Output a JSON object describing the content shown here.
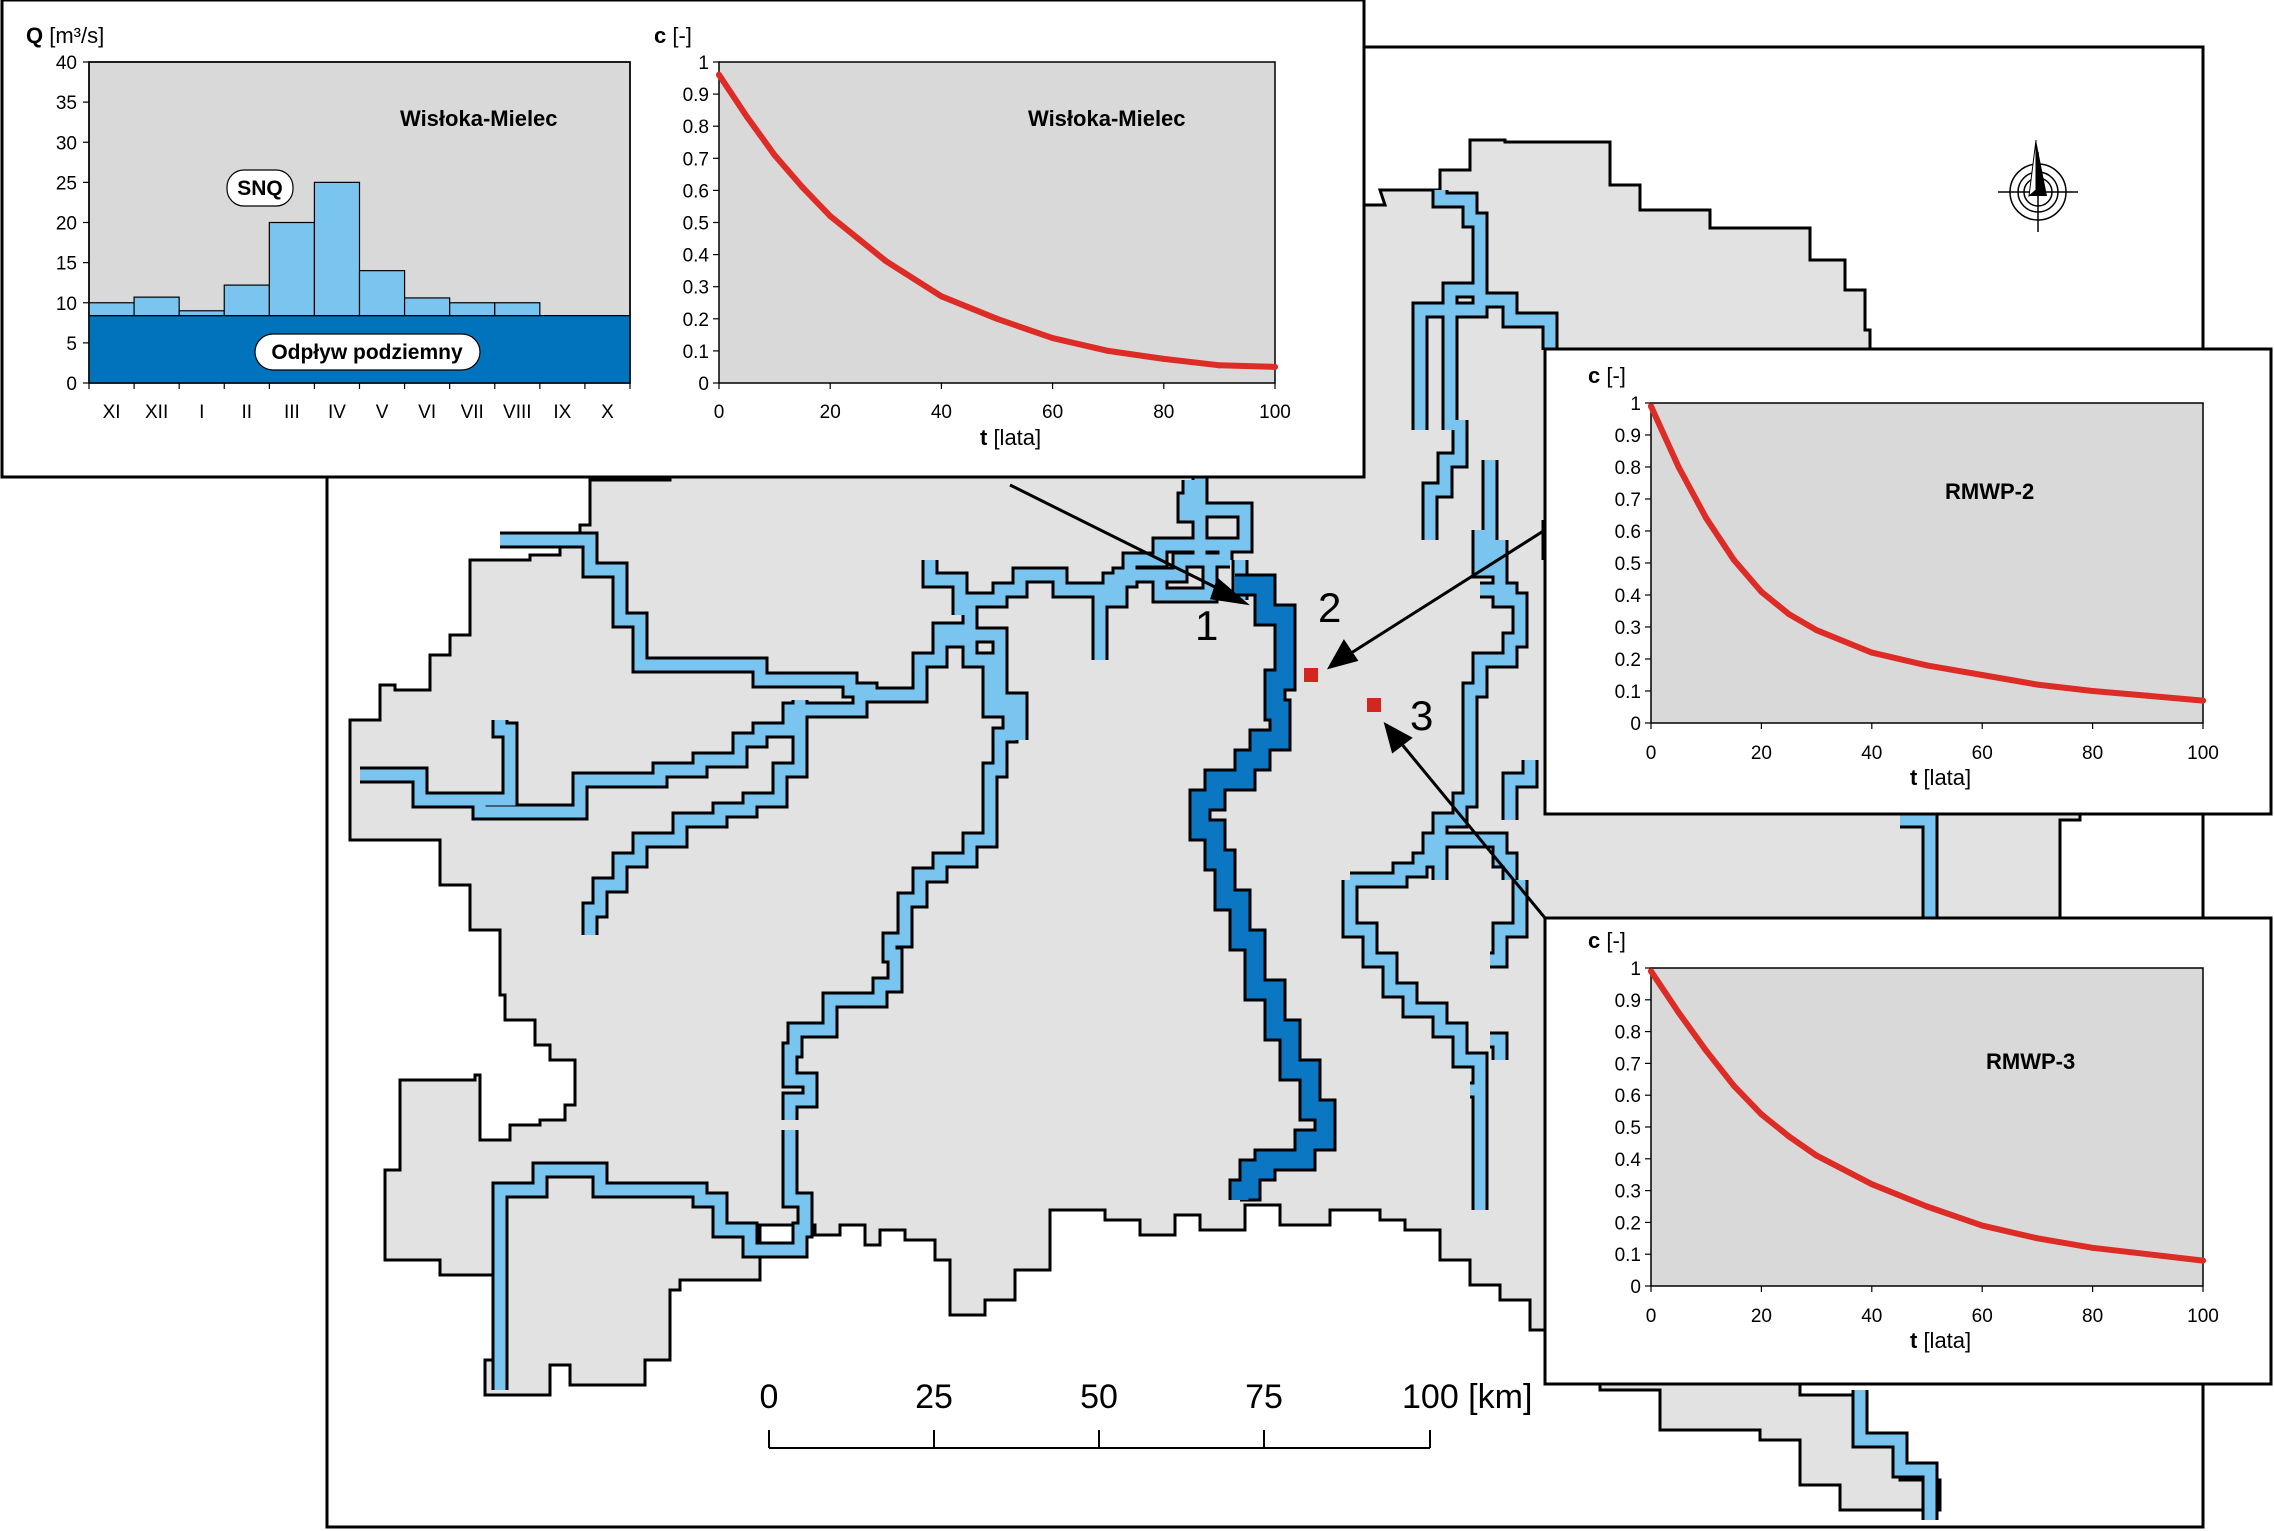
{
  "colors": {
    "map_fill": "#e2e2e2",
    "plot_bg": "#d9d9d9",
    "river_light": "#7ac5ef",
    "river_dark": "#0b77c2",
    "baseflow": "#0073bd",
    "bar_fill": "#7ac5ef",
    "curve": "#dd2b26",
    "point": "#d2261f"
  },
  "map": {
    "scale_ticks": [
      "0",
      "25",
      "50",
      "75"
    ],
    "scale_end": "100 [km]",
    "points": [
      {
        "label": "1"
      },
      {
        "label": "2"
      },
      {
        "label": "3"
      }
    ],
    "north_arrow_icon": "north-arrow-icon"
  },
  "chart_data": [
    {
      "id": "flow",
      "type": "bar",
      "title": "Wisłoka-Mielec",
      "ylabel_bold": "Q",
      "ylabel_rest": " [m³/s]",
      "categories": [
        "XI",
        "XII",
        "I",
        "II",
        "III",
        "IV",
        "V",
        "VI",
        "VII",
        "VIII",
        "IX",
        "X"
      ],
      "values": [
        10,
        10.7,
        9,
        12.2,
        20,
        25,
        14,
        10.6,
        10,
        10,
        8.4,
        8.4
      ],
      "ylim": [
        0,
        40
      ],
      "yticks": [
        "0",
        "5",
        "10",
        "15",
        "20",
        "25",
        "30",
        "35",
        "40"
      ],
      "baseflow": 8.4,
      "baseflow_label": "Odpływ podziemny",
      "annotation": "SNQ"
    },
    {
      "id": "c1",
      "type": "line",
      "title": "Wisłoka-Mielec",
      "ylabel_bold": "c",
      "ylabel_rest": " [-]",
      "xlabel_bold": "t",
      "xlabel_rest": " [lata]",
      "x": [
        0,
        5,
        10,
        15,
        20,
        25,
        30,
        40,
        50,
        60,
        70,
        80,
        90,
        100
      ],
      "y": [
        0.96,
        0.83,
        0.71,
        0.61,
        0.52,
        0.45,
        0.38,
        0.27,
        0.2,
        0.14,
        0.1,
        0.075,
        0.055,
        0.05
      ],
      "xlim": [
        0,
        100
      ],
      "ylim": [
        0,
        1
      ],
      "xticks": [
        "0",
        "20",
        "40",
        "60",
        "80",
        "100"
      ],
      "yticks": [
        "0",
        "0.1",
        "0.2",
        "0.3",
        "0.4",
        "0.5",
        "0.6",
        "0.7",
        "0.8",
        "0.9",
        "1"
      ]
    },
    {
      "id": "c2",
      "type": "line",
      "title": "RMWP-2",
      "ylabel_bold": "c",
      "ylabel_rest": " [-]",
      "xlabel_bold": "t",
      "xlabel_rest": " [lata]",
      "x": [
        0,
        5,
        10,
        15,
        20,
        25,
        30,
        40,
        50,
        60,
        70,
        80,
        90,
        100
      ],
      "y": [
        0.99,
        0.8,
        0.64,
        0.51,
        0.41,
        0.34,
        0.29,
        0.22,
        0.18,
        0.15,
        0.12,
        0.1,
        0.085,
        0.07
      ],
      "xlim": [
        0,
        100
      ],
      "ylim": [
        0,
        1
      ],
      "xticks": [
        "0",
        "20",
        "40",
        "60",
        "80",
        "100"
      ],
      "yticks": [
        "0",
        "0.1",
        "0.2",
        "0.3",
        "0.4",
        "0.5",
        "0.6",
        "0.7",
        "0.8",
        "0.9",
        "1"
      ]
    },
    {
      "id": "c3",
      "type": "line",
      "title": "RMWP-3",
      "ylabel_bold": "c",
      "ylabel_rest": " [-]",
      "xlabel_bold": "t",
      "xlabel_rest": " [lata]",
      "x": [
        0,
        5,
        10,
        15,
        20,
        25,
        30,
        40,
        50,
        60,
        70,
        80,
        90,
        100
      ],
      "y": [
        0.99,
        0.86,
        0.74,
        0.63,
        0.54,
        0.47,
        0.41,
        0.32,
        0.25,
        0.19,
        0.15,
        0.12,
        0.1,
        0.08
      ],
      "xlim": [
        0,
        100
      ],
      "ylim": [
        0,
        1
      ],
      "xticks": [
        "0",
        "20",
        "40",
        "60",
        "80",
        "100"
      ],
      "yticks": [
        "0",
        "0.1",
        "0.2",
        "0.3",
        "0.4",
        "0.5",
        "0.6",
        "0.7",
        "0.8",
        "0.9",
        "1"
      ]
    }
  ]
}
